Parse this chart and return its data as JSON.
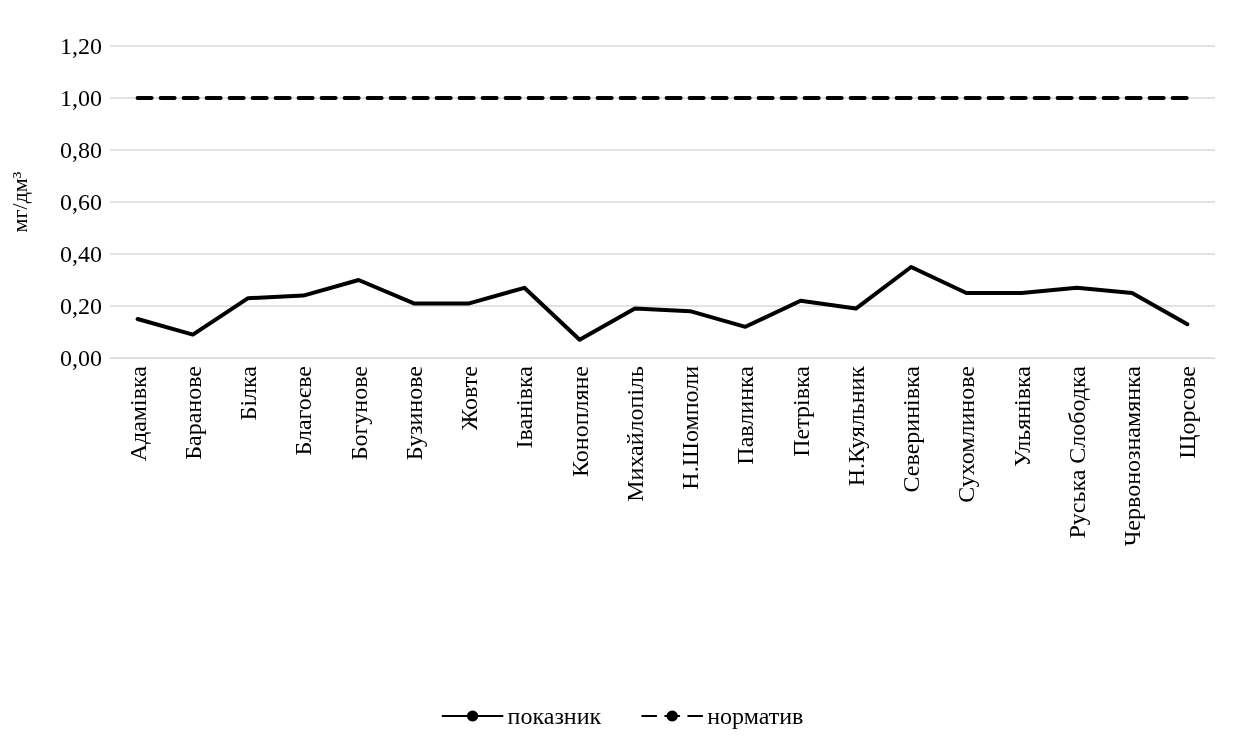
{
  "chart_data": {
    "type": "line",
    "ylabel": "мг/дм³",
    "categories": [
      "Адамівка",
      "Баранове",
      "Білка",
      "Благоєве",
      "Богунове",
      "Бузинове",
      "Жовте",
      "Іванівка",
      "Конопляне",
      "Михайлопіль",
      "Н.Шомполи",
      "Павлинка",
      "Петрівка",
      "Н.Куяльник",
      "Северинівка",
      "Сухомлинове",
      "Ульянівка",
      "Руська Слободка",
      "Червонознамянка",
      "Щорсове"
    ],
    "series": [
      {
        "name": "показник",
        "color": "#000000",
        "line_style": "solid",
        "values": [
          0.15,
          0.09,
          0.23,
          0.24,
          0.3,
          0.21,
          0.21,
          0.27,
          0.07,
          0.19,
          0.18,
          0.12,
          0.22,
          0.19,
          0.35,
          0.25,
          0.25,
          0.27,
          0.25,
          0.13
        ]
      },
      {
        "name": "норматив",
        "color": "#000000",
        "line_style": "dashed",
        "values": [
          1,
          1,
          1,
          1,
          1,
          1,
          1,
          1,
          1,
          1,
          1,
          1,
          1,
          1,
          1,
          1,
          1,
          1,
          1,
          1
        ]
      }
    ],
    "ylim": [
      0,
      1.2
    ],
    "yticks": [
      {
        "value": 0,
        "label": "0,00"
      },
      {
        "value": 0.2,
        "label": "0,20"
      },
      {
        "value": 0.4,
        "label": "0,40"
      },
      {
        "value": 0.6,
        "label": "0,60"
      },
      {
        "value": 0.8,
        "label": "0,80"
      },
      {
        "value": 1,
        "label": "1,00"
      },
      {
        "value": 1.2,
        "label": "1,20"
      }
    ],
    "grid": "y",
    "legend": "bottom",
    "marker": "none"
  }
}
